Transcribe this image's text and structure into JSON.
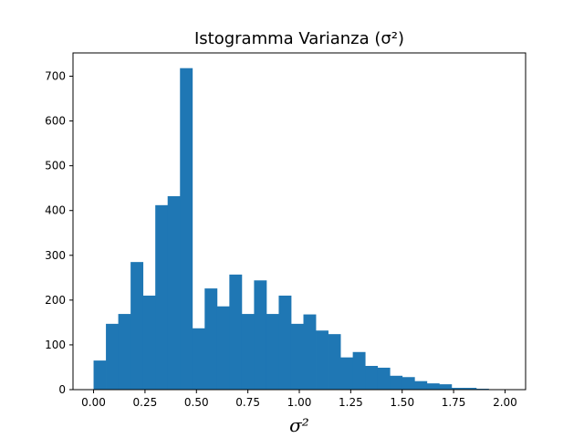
{
  "chart_data": {
    "type": "bar",
    "title": "Istogramma Varianza (σ²)",
    "xlabel": "σ²",
    "ylabel": "",
    "bin_width": 0.06,
    "bins_start": [
      0.0,
      0.06,
      0.12,
      0.18,
      0.24,
      0.3,
      0.36,
      0.42,
      0.48,
      0.54,
      0.6,
      0.66,
      0.72,
      0.78,
      0.84,
      0.9,
      0.96,
      1.02,
      1.08,
      1.14,
      1.2,
      1.26,
      1.32,
      1.38,
      1.44,
      1.5,
      1.56,
      1.62,
      1.68,
      1.74,
      1.8,
      1.86
    ],
    "values": [
      65,
      147,
      169,
      285,
      210,
      412,
      432,
      718,
      137,
      226,
      186,
      257,
      169,
      244,
      169,
      210,
      147,
      168,
      132,
      124,
      72,
      84,
      53,
      49,
      31,
      28,
      19,
      14,
      12,
      4,
      4,
      2
    ],
    "xlim": [
      -0.1,
      2.1
    ],
    "ylim": [
      0,
      752
    ],
    "xticks": [
      0.0,
      0.25,
      0.5,
      0.75,
      1.0,
      1.25,
      1.5,
      1.75,
      2.0
    ],
    "xtick_labels": [
      "0.00",
      "0.25",
      "0.50",
      "0.75",
      "1.00",
      "1.25",
      "1.50",
      "1.75",
      "2.00"
    ],
    "yticks": [
      0,
      100,
      200,
      300,
      400,
      500,
      600,
      700
    ],
    "ytick_labels": [
      "0",
      "100",
      "200",
      "300",
      "400",
      "500",
      "600",
      "700"
    ],
    "bar_color": "#1f77b4",
    "grid": false
  }
}
